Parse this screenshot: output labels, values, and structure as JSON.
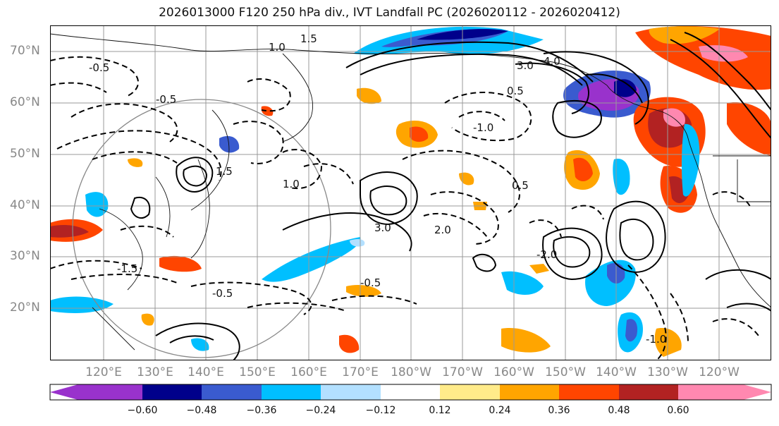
{
  "title": "2026013000 F120 250 hPa div., IVT Landfall PC (2026020112 - 2026020412)",
  "lat_labels": [
    "70°N",
    "60°N",
    "50°N",
    "40°N",
    "30°N",
    "20°N"
  ],
  "lon_labels": [
    "120°E",
    "130°E",
    "140°E",
    "150°E",
    "160°E",
    "170°E",
    "180°W",
    "170°W",
    "160°W",
    "150°W",
    "140°W",
    "130°W",
    "120°W"
  ],
  "contour_labels": [
    "1.0",
    "1.5",
    "3.0",
    "4.0",
    "0.5",
    "2.0",
    "1.5",
    "3.0",
    "1.0",
    "-0.5",
    "-1.0",
    "-1.5",
    "-2.0",
    "-0.5",
    "0.5",
    "-0.5",
    "-1.0",
    "-0.5"
  ],
  "colorbar": {
    "colors": [
      "#9932cc",
      "#00008b",
      "#3a5bcf",
      "#00bfff",
      "#b3e0ff",
      "#ffffff",
      "#ffeb8a",
      "#ffa500",
      "#ff4500",
      "#b22222",
      "#ff88b0"
    ],
    "tick_labels": [
      "−0.60",
      "−0.48",
      "−0.36",
      "−0.24",
      "−0.12",
      "0.12",
      "0.24",
      "0.36",
      "0.48",
      "0.60"
    ]
  }
}
